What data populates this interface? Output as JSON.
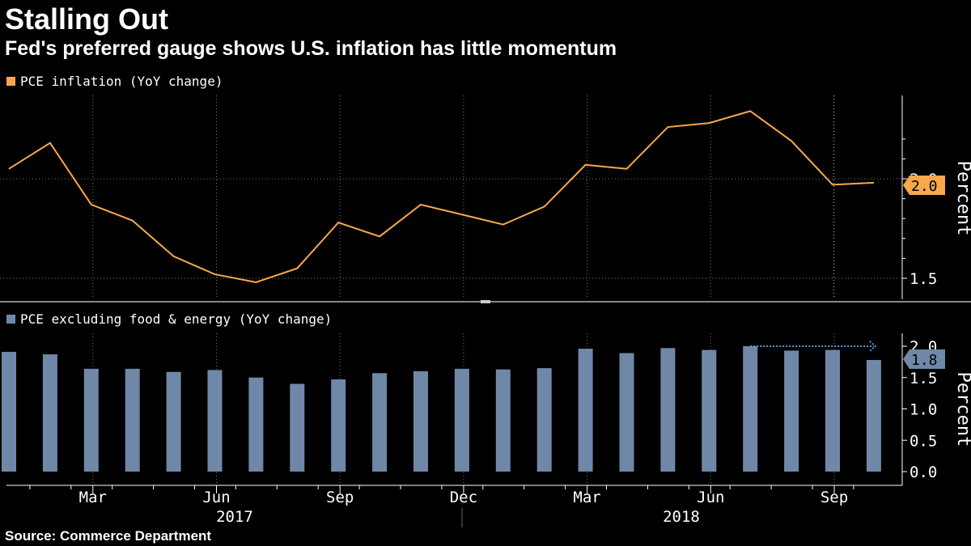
{
  "title": "Stalling Out",
  "subtitle": "Fed's preferred gauge shows U.S. inflation has little momentum",
  "source": "Source: Commerce Department",
  "colors": {
    "line": "#f8a84a",
    "bar": "#7088a8",
    "arrow": "#5a9bd5",
    "grid": "#777777",
    "background": "#000000",
    "text": "#ffffff"
  },
  "chart_data": [
    {
      "type": "line",
      "legend": "PCE inflation (YoY change)",
      "ylabel": "Percent",
      "yticks": [
        "1.5",
        "2.0"
      ],
      "ylim": [
        1.42,
        2.42
      ],
      "last_value_label": "2.0",
      "x": [
        "2017-01",
        "2017-02",
        "2017-03",
        "2017-04",
        "2017-05",
        "2017-06",
        "2017-07",
        "2017-08",
        "2017-09",
        "2017-10",
        "2017-11",
        "2017-12",
        "2018-01",
        "2018-02",
        "2018-03",
        "2018-04",
        "2018-05",
        "2018-06",
        "2018-07",
        "2018-08",
        "2018-09",
        "2018-10"
      ],
      "values": [
        2.05,
        2.18,
        1.87,
        1.79,
        1.61,
        1.52,
        1.48,
        1.55,
        1.78,
        1.71,
        1.87,
        1.82,
        1.77,
        1.86,
        2.07,
        2.05,
        2.26,
        2.28,
        2.34,
        2.19,
        1.97,
        1.98
      ],
      "grid": true
    },
    {
      "type": "bar",
      "legend": "PCE excluding food & energy (YoY change)",
      "ylabel": "Percent",
      "yticks": [
        "0.0",
        "0.5",
        "1.0",
        "1.5",
        "2.0"
      ],
      "ylim": [
        0,
        2.0
      ],
      "last_value_label": "1.8",
      "x": [
        "2017-01",
        "2017-02",
        "2017-03",
        "2017-04",
        "2017-05",
        "2017-06",
        "2017-07",
        "2017-08",
        "2017-09",
        "2017-10",
        "2017-11",
        "2017-12",
        "2018-01",
        "2018-02",
        "2018-03",
        "2018-04",
        "2018-05",
        "2018-06",
        "2018-07",
        "2018-08",
        "2018-09",
        "2018-10"
      ],
      "values": [
        1.91,
        1.87,
        1.64,
        1.64,
        1.59,
        1.62,
        1.5,
        1.4,
        1.47,
        1.57,
        1.6,
        1.64,
        1.63,
        1.65,
        1.96,
        1.89,
        1.97,
        1.94,
        2.0,
        1.93,
        1.94,
        1.78
      ],
      "annotation": "arrow at 2.0 from Jul 2018 to Oct 2018",
      "grid": true
    }
  ],
  "x_axis": {
    "month_labels": [
      "Mar",
      "Jun",
      "Sep",
      "Dec",
      "Mar",
      "Jun",
      "Sep"
    ],
    "year_labels": [
      "2017",
      "2018"
    ]
  }
}
